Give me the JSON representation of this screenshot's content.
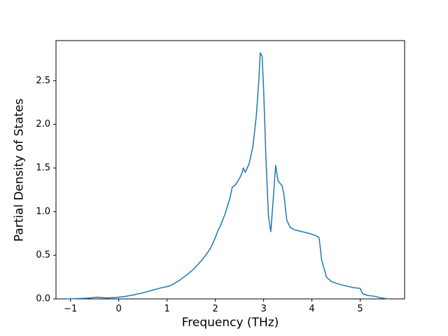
{
  "figure": {
    "background": "#ffffff",
    "spine_color": "#000000",
    "tick_color": "#000000",
    "accent": "#1f77b4"
  },
  "chart_data": {
    "type": "line",
    "title": "",
    "xlabel": "Frequency (THz)",
    "ylabel": "Partial Density of States",
    "xlim": [
      -1.3,
      5.92
    ],
    "ylim": [
      0,
      2.96
    ],
    "grid": false,
    "legend": null,
    "x_ticks": [
      -1,
      0,
      1,
      2,
      3,
      4,
      5
    ],
    "x_tick_labels": [
      "−1",
      "0",
      "1",
      "2",
      "3",
      "4",
      "5"
    ],
    "y_ticks": [
      0.0,
      0.5,
      1.0,
      1.5,
      2.0,
      2.5
    ],
    "y_tick_labels": [
      "0.0",
      "0.5",
      "1.0",
      "1.5",
      "2.0",
      "2.5"
    ],
    "series": [
      {
        "name": "partial-density-of-states",
        "color": "#1f77b4",
        "x": [
          -1.05,
          -0.8,
          -0.6,
          -0.45,
          -0.35,
          -0.25,
          -0.1,
          0.0,
          0.15,
          0.3,
          0.5,
          0.7,
          0.9,
          1.0,
          1.1,
          1.25,
          1.4,
          1.55,
          1.7,
          1.8,
          1.9,
          2.0,
          2.05,
          2.1,
          2.2,
          2.3,
          2.35,
          2.42,
          2.5,
          2.55,
          2.58,
          2.62,
          2.7,
          2.78,
          2.85,
          2.9,
          2.93,
          2.97,
          3.0,
          3.05,
          3.1,
          3.15,
          3.2,
          3.25,
          3.3,
          3.38,
          3.42,
          3.48,
          3.55,
          3.65,
          3.8,
          3.95,
          4.1,
          4.15,
          4.2,
          4.3,
          4.4,
          4.55,
          4.7,
          4.85,
          5.0,
          5.05,
          5.15,
          5.3,
          5.45,
          5.6
        ],
        "y": [
          0.0,
          0.005,
          0.01,
          0.02,
          0.015,
          0.01,
          0.015,
          0.02,
          0.03,
          0.045,
          0.07,
          0.1,
          0.13,
          0.14,
          0.16,
          0.21,
          0.27,
          0.34,
          0.43,
          0.5,
          0.58,
          0.7,
          0.78,
          0.83,
          0.97,
          1.15,
          1.28,
          1.31,
          1.38,
          1.44,
          1.5,
          1.45,
          1.55,
          1.75,
          2.1,
          2.5,
          2.82,
          2.78,
          2.4,
          1.6,
          0.95,
          0.77,
          1.15,
          1.53,
          1.35,
          1.3,
          1.2,
          0.9,
          0.82,
          0.79,
          0.77,
          0.75,
          0.72,
          0.7,
          0.45,
          0.25,
          0.2,
          0.17,
          0.15,
          0.13,
          0.12,
          0.06,
          0.04,
          0.03,
          0.01,
          0.0
        ]
      }
    ]
  }
}
